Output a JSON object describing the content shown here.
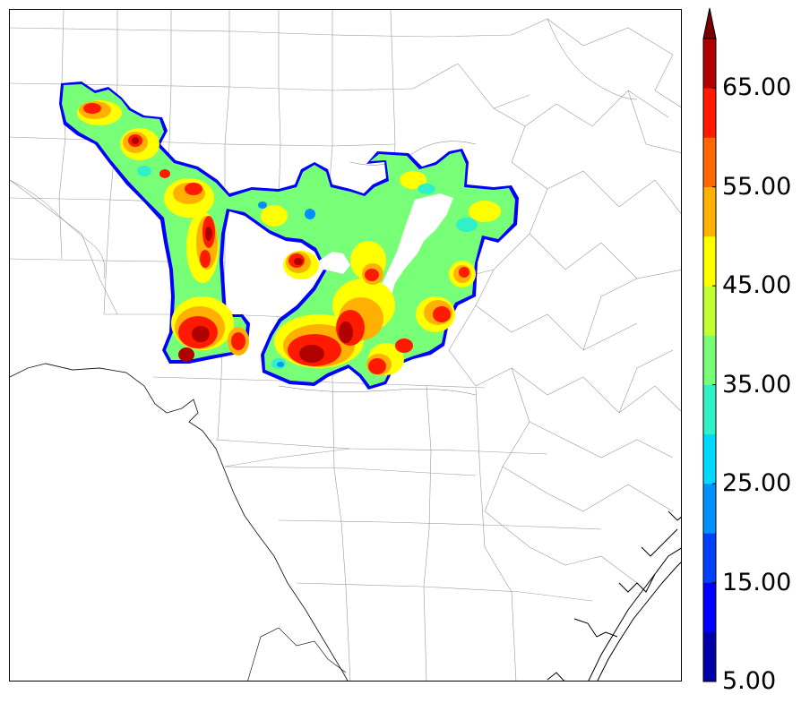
{
  "colorbar": {
    "min": 5,
    "step": 5,
    "bins": 13,
    "extend": "max",
    "colors": [
      "#0000aa",
      "#0000ff",
      "#0040ff",
      "#0090ff",
      "#00d8ff",
      "#30f0c8",
      "#78ff78",
      "#c0ff30",
      "#ffff00",
      "#ffb000",
      "#ff6800",
      "#ff1a00",
      "#b00000"
    ],
    "extend_color": "#7a0000",
    "tick_labels": [
      {
        "value": 5,
        "text": "5.00"
      },
      {
        "value": 15,
        "text": "15.00"
      },
      {
        "value": 25,
        "text": "25.00"
      },
      {
        "value": 35,
        "text": "35.00"
      },
      {
        "value": 45,
        "text": "45.00"
      },
      {
        "value": 55,
        "text": "55.00"
      },
      {
        "value": 65,
        "text": "65.00"
      }
    ]
  },
  "map": {
    "border_color": "#000000",
    "county_line_color": "#9a9a9a",
    "coast_color": "#000000"
  }
}
